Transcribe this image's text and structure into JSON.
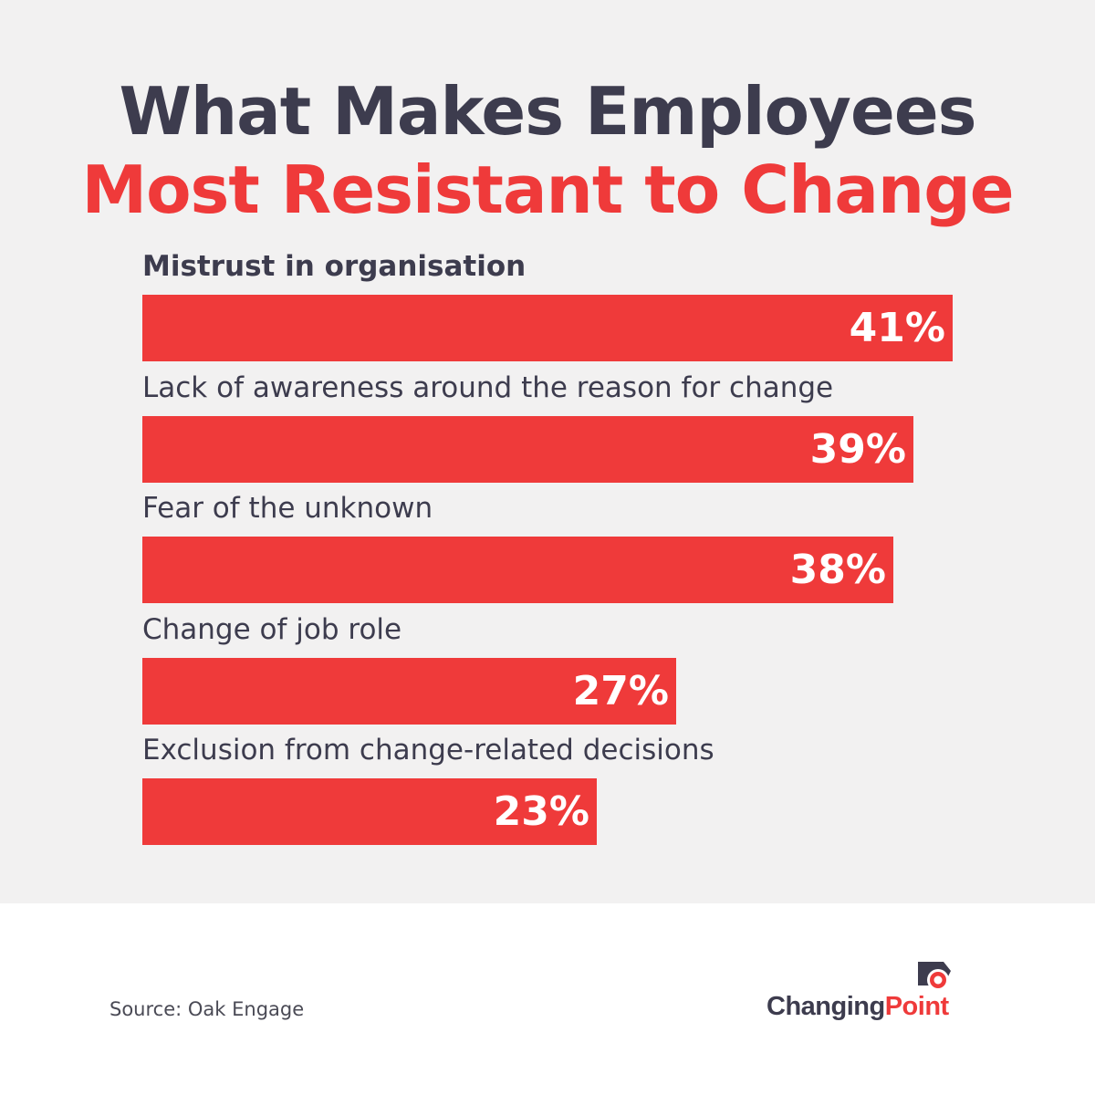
{
  "colors": {
    "title_dark": "#3d3c4e",
    "title_accent": "#ef3a3a",
    "bar": "#ef3a3a",
    "label": "#3d3c4e",
    "panel_bg": "#f2f1f1",
    "source": "#4a4a55",
    "logo_dark": "#3d3c4e",
    "logo_accent": "#ef3a3a"
  },
  "title": {
    "line1": "What Makes Employees",
    "line2": "Most Resistant to Change"
  },
  "chart_data": {
    "type": "bar",
    "orientation": "horizontal",
    "categories": [
      "Mistrust in organisation",
      "Lack of awareness around the reason for change",
      "Fear of the unknown",
      "Change of job role",
      "Exclusion from change-related decisions"
    ],
    "values": [
      41,
      39,
      38,
      27,
      23
    ],
    "value_labels": [
      "41%",
      "39%",
      "38%",
      "27%",
      "23%"
    ],
    "unit": "%",
    "xlim": [
      0,
      41
    ],
    "grid": false,
    "legend": "none"
  },
  "footer": {
    "source": "Source: Oak Engage",
    "logo_dark": "Changing",
    "logo_accent": "Point",
    "logo_icon": "changingpoint-logo-icon"
  }
}
